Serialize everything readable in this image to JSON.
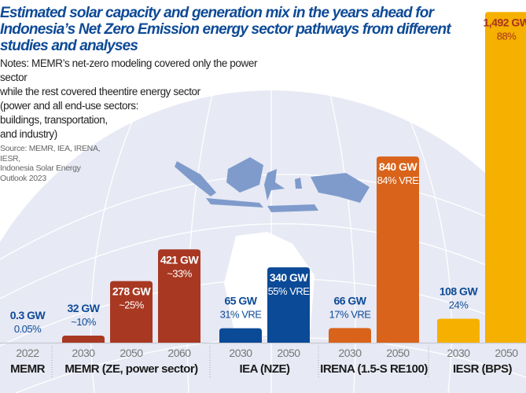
{
  "title": "Estimated solar capacity and generation mix in the years ahead for Indonesia’s Net Zero Emission energy sector pathways from different studies and analyses",
  "notes": [
    "Notes: MEMR’s net-zero modeling covered only the power sector",
    "while the rest covered theentire energy sector",
    "(power and all end-use sectors:",
    "buildings, transportation,",
    "and industry)"
  ],
  "source": [
    "Source: MEMR, IEA, IRENA, IESR,",
    "Indonesia Solar Energy",
    "Outlook 2023"
  ],
  "chart_data": {
    "type": "bar",
    "unit": "GW",
    "groups": [
      {
        "name": "MEMR",
        "color": "#a83822",
        "bars": [
          {
            "year": "2022",
            "value": 0.3,
            "label": "0.3 GW",
            "share": "0.05%"
          }
        ]
      },
      {
        "name": "MEMR (ZE, power sector)",
        "color": "#a83822",
        "bars": [
          {
            "year": "2030",
            "value": 32,
            "label": "32 GW",
            "share": "~10%"
          },
          {
            "year": "2050",
            "value": 278,
            "label": "278 GW",
            "share": "~25%"
          },
          {
            "year": "2060",
            "value": 421,
            "label": "421 GW",
            "share": "~33%"
          }
        ]
      },
      {
        "name": "IEA (NZE)",
        "color": "#0b4a96",
        "bars": [
          {
            "year": "2030",
            "value": 65,
            "label": "65 GW",
            "share": "31% VRE"
          },
          {
            "year": "2050",
            "value": 340,
            "label": "340 GW",
            "share": "55% VRE"
          }
        ]
      },
      {
        "name": "IRENA (1.5-S RE100)",
        "color": "#d9631a",
        "bars": [
          {
            "year": "2030",
            "value": 66,
            "label": "66 GW",
            "share": "17% VRE"
          },
          {
            "year": "2050",
            "value": 840,
            "label": "840 GW",
            "share": "84% VRE"
          }
        ]
      },
      {
        "name": "IESR (BPS)",
        "color": "#f5b000",
        "bars": [
          {
            "year": "2030",
            "value": 108,
            "label": "108 GW",
            "share": "24%"
          },
          {
            "year": "2050",
            "value": 1492,
            "label": "1,492 GW",
            "share": "88%"
          }
        ]
      }
    ],
    "label_colors": {
      "outside": "#0d4a96",
      "inside": "#ffffff",
      "inside_yellow": "#a8321f"
    }
  }
}
